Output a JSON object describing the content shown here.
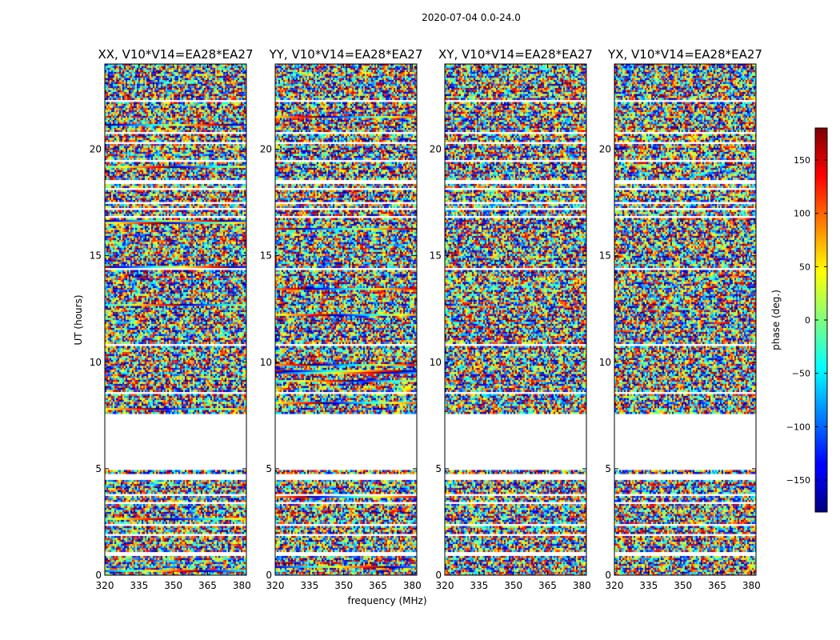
{
  "chart_data": {
    "type": "heatmap",
    "title": "2020-07-04 0.0-24.0",
    "xlabel": "frequency (MHz)",
    "ylabel": "UT (hours)",
    "xlim": [
      320,
      382
    ],
    "ylim": [
      0,
      24
    ],
    "xticks": [
      "320",
      "335",
      "350",
      "365",
      "380"
    ],
    "yticks": [
      "0",
      "5",
      "10",
      "15",
      "20"
    ],
    "panels": [
      {
        "title": "XX, V10*V14=EA28*EA27"
      },
      {
        "title": "YY, V10*V14=EA28*EA27"
      },
      {
        "title": "XY, V10*V14=EA28*EA27"
      },
      {
        "title": "YX, V10*V14=EA28*EA27"
      }
    ],
    "colorbar": {
      "label": "phase (deg.)",
      "range": [
        -180,
        180
      ],
      "ticks": [
        "150",
        "100",
        "50",
        "0",
        "−50",
        "−100",
        "−150"
      ],
      "colormap": "jet"
    },
    "data_gap_hours": [
      4.95,
      7.6
    ]
  }
}
